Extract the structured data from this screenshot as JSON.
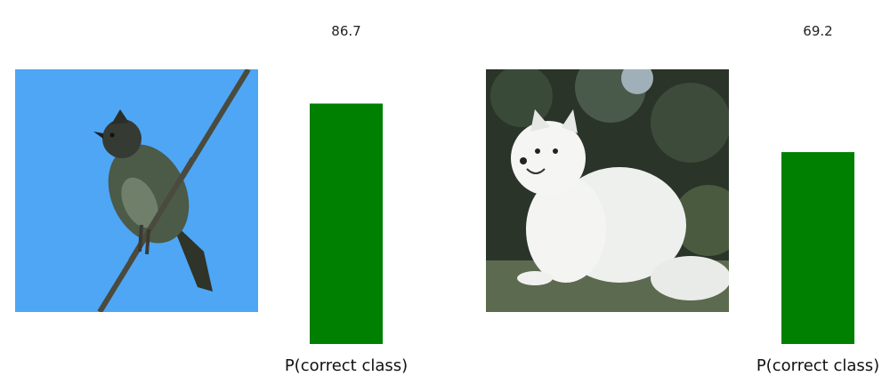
{
  "chart_data": [
    {
      "type": "bar",
      "categories": [
        "P(correct class)"
      ],
      "values": [
        86.7
      ],
      "value_label": "86.7",
      "xlabel": "P(correct class)",
      "ylim": [
        0,
        100
      ],
      "bar_color": "#008000",
      "grid": false,
      "image": "bird on a wire, blue sky background"
    },
    {
      "type": "bar",
      "categories": [
        "P(correct class)"
      ],
      "values": [
        69.2
      ],
      "value_label": "69.2",
      "xlabel": "P(correct class)",
      "ylim": [
        0,
        100
      ],
      "bar_color": "#008000",
      "grid": false,
      "image": "white fluffy dog sitting on grass, dark foliage background"
    }
  ]
}
